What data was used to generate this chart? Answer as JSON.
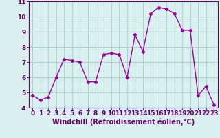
{
  "x": [
    0,
    1,
    2,
    3,
    4,
    5,
    6,
    7,
    8,
    9,
    10,
    11,
    12,
    13,
    14,
    15,
    16,
    17,
    18,
    19,
    20,
    21,
    22,
    23
  ],
  "y": [
    4.8,
    4.5,
    4.7,
    6.0,
    7.2,
    7.1,
    7.0,
    5.7,
    5.7,
    7.5,
    7.6,
    7.5,
    6.0,
    8.8,
    7.7,
    10.2,
    10.6,
    10.5,
    10.2,
    9.1,
    9.1,
    4.8,
    5.4,
    4.2
  ],
  "line_color": "#990099",
  "marker": "D",
  "marker_size": 2.2,
  "linewidth": 1.0,
  "bg_color": "#d8f0f0",
  "grid_color": "#b0cece",
  "xlabel": "Windchill (Refroidissement éolien,°C)",
  "ylabel": "",
  "xlim": [
    -0.5,
    23.5
  ],
  "ylim": [
    4,
    11
  ],
  "yticks": [
    4,
    5,
    6,
    7,
    8,
    9,
    10,
    11
  ],
  "xticks": [
    0,
    1,
    2,
    3,
    4,
    5,
    6,
    7,
    8,
    9,
    10,
    11,
    12,
    13,
    14,
    15,
    16,
    17,
    18,
    19,
    20,
    21,
    22,
    23
  ],
  "axis_color": "#660066",
  "tick_color": "#660066",
  "xlabel_color": "#660066",
  "xlabel_fontsize": 7.0,
  "tick_fontsize": 6.5,
  "xlabel_fontweight": "bold"
}
